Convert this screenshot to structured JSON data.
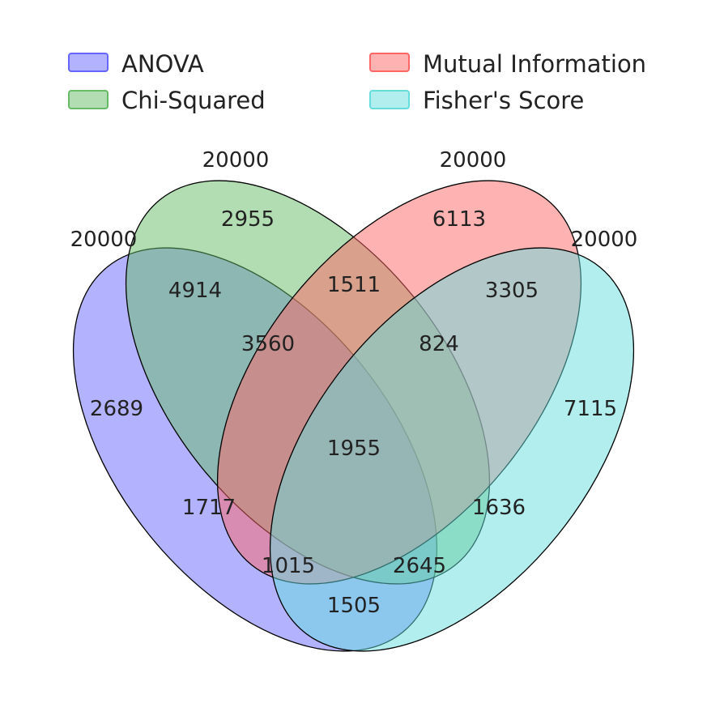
{
  "sets": [
    {
      "id": "anova",
      "name": "ANOVA",
      "total": "20000",
      "color": "#6666ff"
    },
    {
      "id": "chi",
      "name": "Chi-Squared",
      "total": "20000",
      "color": "#66bb66"
    },
    {
      "id": "mi",
      "name": "Mutual Information",
      "total": "20000",
      "color": "#ff6666"
    },
    {
      "id": "fisher",
      "name": "Fisher's Score",
      "total": "20000",
      "color": "#66dddd"
    }
  ],
  "regions": {
    "anova_only": "2689",
    "chi_only": "2955",
    "mi_only": "6113",
    "fisher_only": "7115",
    "anova_chi": "4914",
    "chi_mi": "1511",
    "mi_fisher": "3305",
    "anova_chi_mi": "3560",
    "chi_mi_fisher": "824",
    "all_four": "1955",
    "anova_mi": "1717",
    "chi_fisher": "1636",
    "anova_mi_fisher": "1015",
    "anova_chi_fisher": "2645",
    "anova_fisher": "1505"
  }
}
